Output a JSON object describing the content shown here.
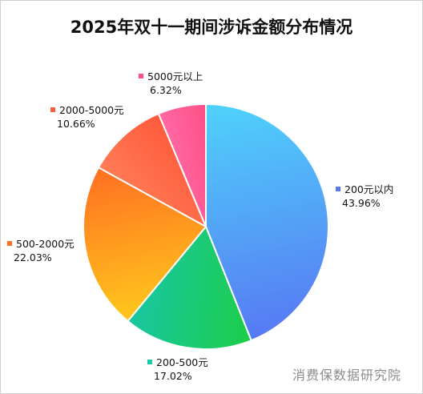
{
  "title": "2025年双十一期间涉诉金额分布情况",
  "watermark": "消费保数据研究院",
  "chart_data": {
    "type": "pie",
    "title": "2025年双十一期间涉诉金额分布情况",
    "start_angle_deg": 0,
    "direction": "clockwise",
    "slices": [
      {
        "label": "200元以内",
        "value": 43.96,
        "pct_text": "43.96%",
        "color_start": "#4fd2fb",
        "color_end": "#5779f3"
      },
      {
        "label": "200-500元",
        "value": 17.02,
        "pct_text": "17.02%",
        "color_start": "#1dcd48",
        "color_end": "#18c7a3"
      },
      {
        "label": "500-2000元",
        "value": 22.03,
        "pct_text": "22.03%",
        "color_start": "#ffc81c",
        "color_end": "#ff6f22"
      },
      {
        "label": "2000-5000元",
        "value": 10.66,
        "pct_text": "10.66%",
        "color_start": "#ff7c57",
        "color_end": "#ff5a3a"
      },
      {
        "label": "5000元以上",
        "value": 6.32,
        "pct_text": "6.32%",
        "color_start": "#ff6aa6",
        "color_end": "#ff4f86"
      }
    ],
    "legend": "none (labels beside slices)"
  }
}
